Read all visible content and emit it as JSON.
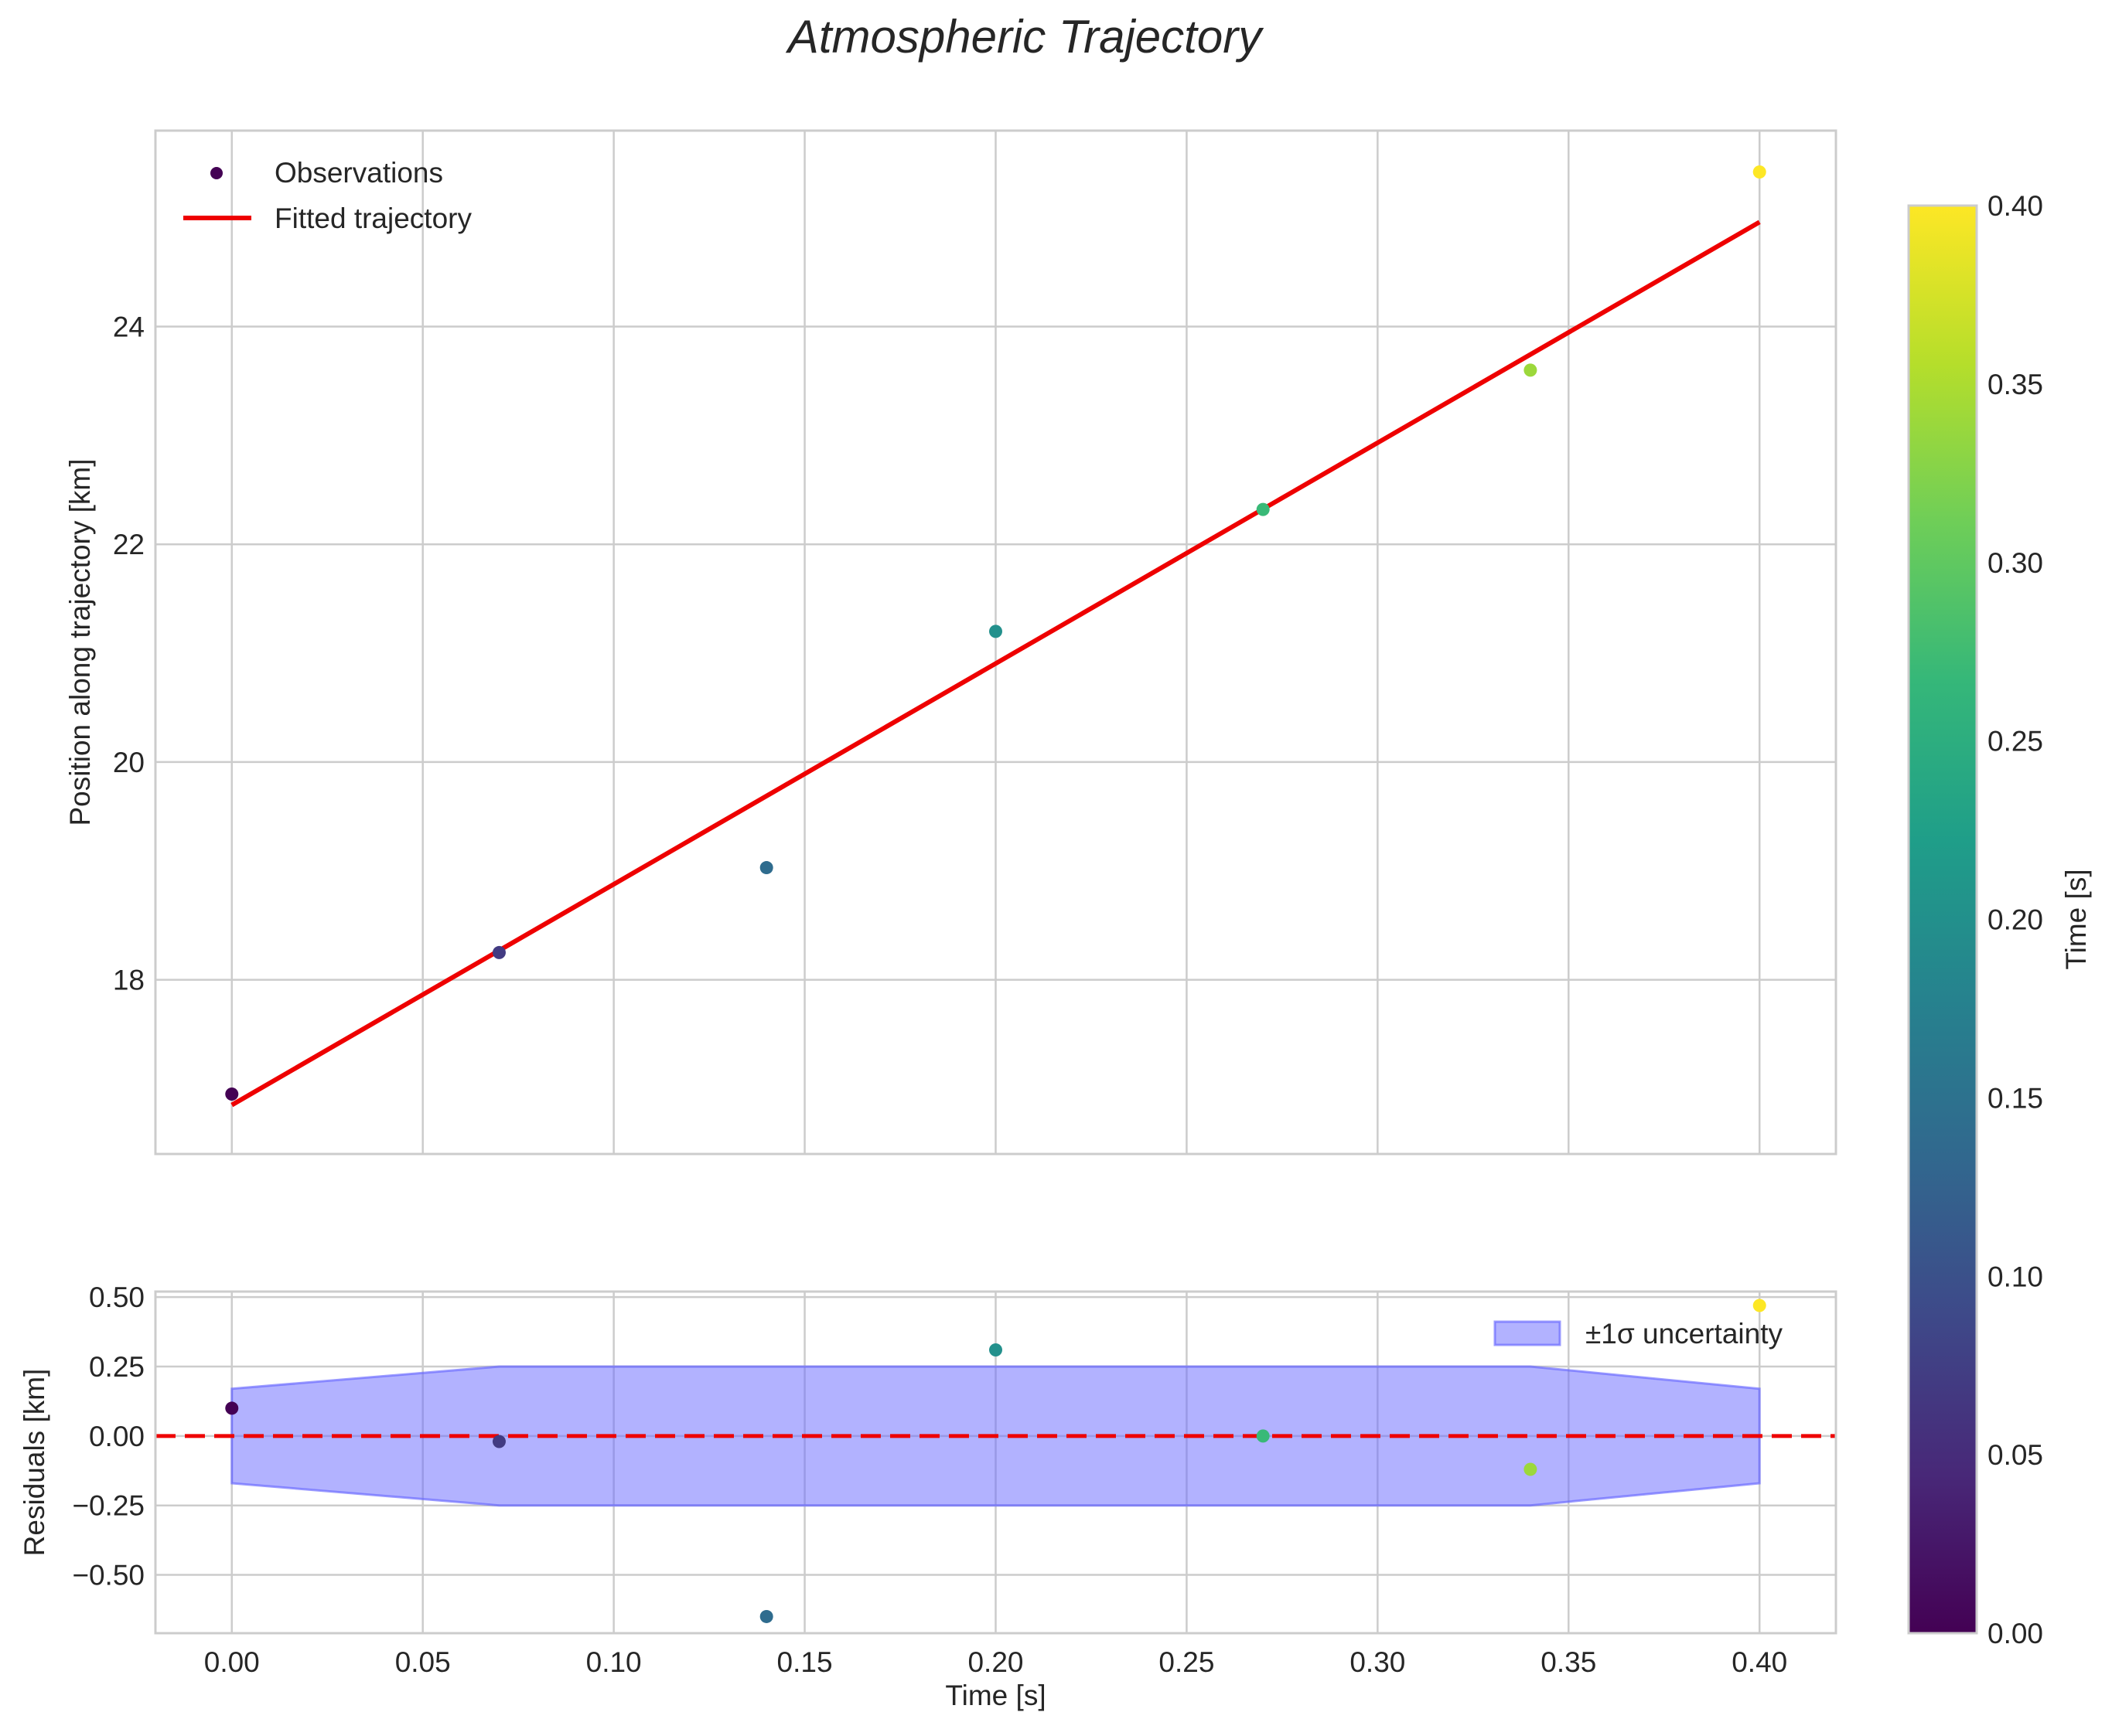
{
  "chart_data": {
    "type": "scatter",
    "title": "Atmospheric Trajectory",
    "colormap": "viridis",
    "colormap_stops": [
      "#440154",
      "#482878",
      "#3e4989",
      "#31688e",
      "#26828e",
      "#1f9e89",
      "#35b779",
      "#6ece58",
      "#b5de2b",
      "#fde725"
    ],
    "fit_color": "#ee0000",
    "band_color": "#6666ff",
    "zero_line_color": "#ee0000",
    "main_panel": {
      "xlim": [
        -0.02,
        0.42
      ],
      "ylim": [
        16.4,
        25.8
      ],
      "ylabel": "Position along trajectory [km]",
      "yticks": [
        18,
        20,
        22,
        24
      ],
      "ytick_labels": [
        "18",
        "20",
        "22",
        "24"
      ],
      "observations": {
        "name": "Observations",
        "x": [
          0.0,
          0.07,
          0.14,
          0.2,
          0.27,
          0.34,
          0.4
        ],
        "y": [
          16.95,
          18.25,
          19.03,
          21.2,
          22.32,
          23.6,
          25.42
        ]
      },
      "fit": {
        "name": "Fitted trajectory",
        "x": [
          0.0,
          0.4
        ],
        "y": [
          16.85,
          24.96
        ]
      },
      "legend": [
        "Observations",
        "Fitted trajectory"
      ]
    },
    "residual_panel": {
      "xlim": [
        -0.02,
        0.42
      ],
      "ylim": [
        -0.71,
        0.52
      ],
      "xlabel": "Time [s]",
      "ylabel": "Residuals [km]",
      "xticks": [
        0.0,
        0.05,
        0.1,
        0.15,
        0.2,
        0.25,
        0.3,
        0.35,
        0.4
      ],
      "xtick_labels": [
        "0.00",
        "0.05",
        "0.10",
        "0.15",
        "0.20",
        "0.25",
        "0.30",
        "0.35",
        "0.40"
      ],
      "yticks": [
        0.5,
        0.25,
        0.0,
        -0.25,
        -0.5
      ],
      "ytick_labels": [
        "0.50",
        "0.25",
        "0.00",
        "−0.25",
        "−0.50"
      ],
      "residuals": {
        "x": [
          0.0,
          0.07,
          0.14,
          0.2,
          0.27,
          0.34,
          0.4
        ],
        "y": [
          0.1,
          -0.02,
          -0.65,
          0.31,
          0.0,
          -0.12,
          0.47
        ]
      },
      "uncertainty_band": {
        "name": "±1σ uncertainty",
        "x": [
          0.0,
          0.07,
          0.34,
          0.4
        ],
        "upper": [
          0.17,
          0.25,
          0.25,
          0.17
        ],
        "lower": [
          -0.17,
          -0.25,
          -0.25,
          -0.17
        ]
      },
      "legend": [
        "±1σ uncertainty"
      ]
    },
    "colorbar": {
      "label": "Time [s]",
      "range": [
        0.0,
        0.4
      ],
      "ticks": [
        0.0,
        0.05,
        0.1,
        0.15,
        0.2,
        0.25,
        0.3,
        0.35,
        0.4
      ],
      "tick_labels": [
        "0.00",
        "0.05",
        "0.10",
        "0.15",
        "0.20",
        "0.25",
        "0.30",
        "0.35",
        "0.40"
      ]
    }
  }
}
